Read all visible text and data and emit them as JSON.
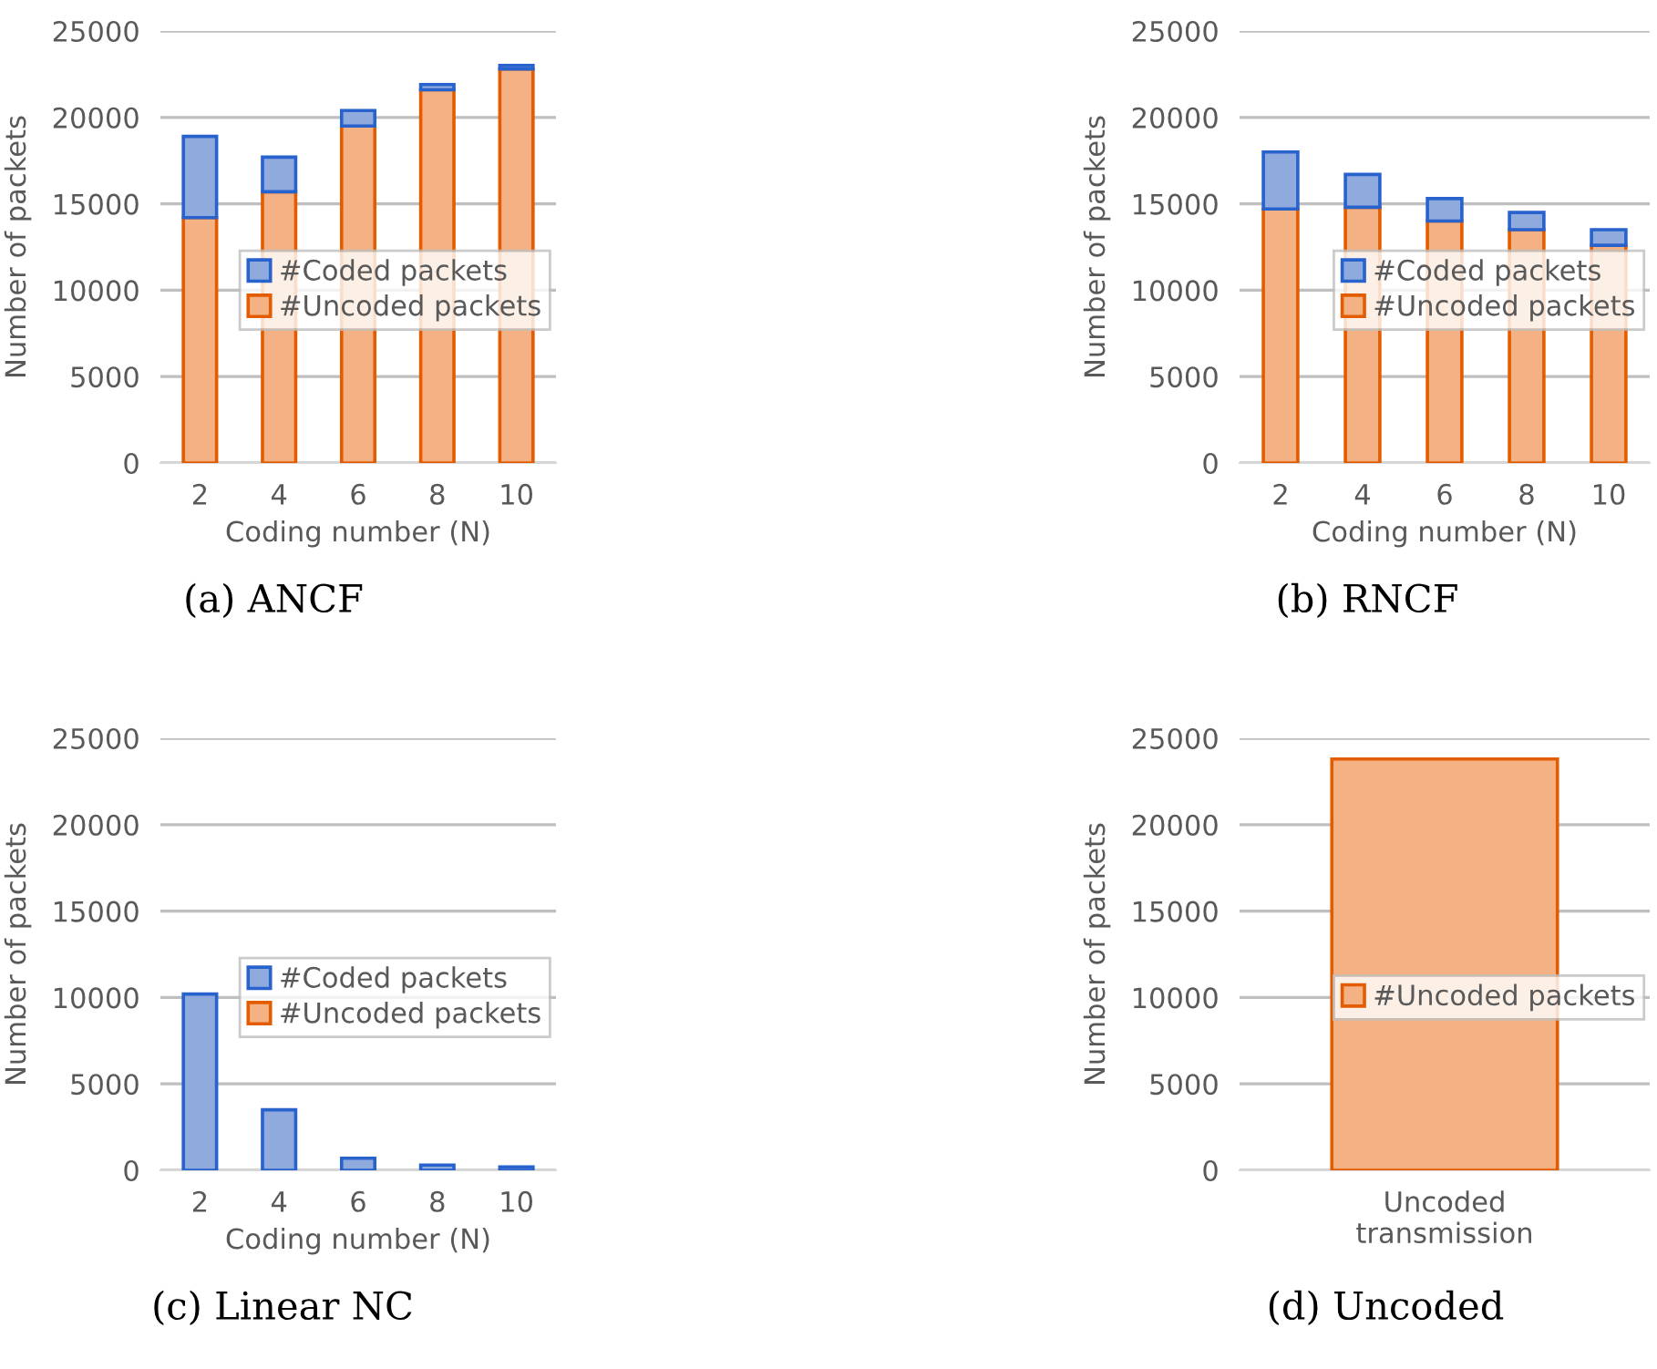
{
  "chart_data": [
    {
      "type": "bar",
      "stacked": true,
      "xlabel": "Coding number (N)",
      "ylabel": "Number of packets",
      "categories": [
        "2",
        "4",
        "6",
        "8",
        "10"
      ],
      "ylim": [
        0,
        25000
      ],
      "yticks": [
        0,
        5000,
        10000,
        15000,
        20000,
        25000
      ],
      "grid": "y",
      "legend": "right",
      "annotations": [
        "(a) ANCF"
      ],
      "series": [
        {
          "name": "#Uncoded packets",
          "color": "#f4b183",
          "values": [
            14200,
            15700,
            19500,
            21600,
            22800
          ]
        },
        {
          "name": "#Coded packets",
          "color": "#8faadc",
          "values": [
            4700,
            2000,
            900,
            300,
            200
          ]
        }
      ]
    },
    {
      "type": "bar",
      "stacked": true,
      "xlabel": "Coding number (N)",
      "ylabel": "Number of packets",
      "categories": [
        "2",
        "4",
        "6",
        "8",
        "10"
      ],
      "ylim": [
        0,
        25000
      ],
      "yticks": [
        0,
        5000,
        10000,
        15000,
        20000,
        25000
      ],
      "grid": "y",
      "legend": "right",
      "annotations": [
        "(b) RNCF"
      ],
      "series": [
        {
          "name": "#Uncoded packets",
          "color": "#f4b183",
          "values": [
            14700,
            14800,
            14000,
            13500,
            12600
          ]
        },
        {
          "name": "#Coded packets",
          "color": "#8faadc",
          "values": [
            3300,
            1900,
            1300,
            1000,
            900
          ]
        }
      ]
    },
    {
      "type": "bar",
      "stacked": true,
      "xlabel": "Coding number (N)",
      "ylabel": "Number of packets",
      "categories": [
        "2",
        "4",
        "6",
        "8",
        "10"
      ],
      "ylim": [
        0,
        25000
      ],
      "yticks": [
        0,
        5000,
        10000,
        15000,
        20000,
        25000
      ],
      "grid": "y",
      "legend": "right",
      "annotations": [
        "(c) Linear NC"
      ],
      "series": [
        {
          "name": "#Uncoded packets",
          "color": "#f4b183",
          "values": [
            0,
            0,
            0,
            0,
            0
          ]
        },
        {
          "name": "#Coded packets",
          "color": "#8faadc",
          "values": [
            10200,
            3500,
            700,
            300,
            200
          ]
        }
      ]
    },
    {
      "type": "bar",
      "ylabel": "Number of packets",
      "categories": [
        "Uncoded\ntransmission"
      ],
      "ylim": [
        0,
        25000
      ],
      "yticks": [
        0,
        5000,
        10000,
        15000,
        20000,
        25000
      ],
      "grid": "y",
      "legend": "right",
      "annotations": [
        "(d) Uncoded"
      ],
      "series": [
        {
          "name": "#Uncoded packets",
          "color": "#f4b183",
          "values": [
            23800
          ]
        }
      ]
    }
  ]
}
